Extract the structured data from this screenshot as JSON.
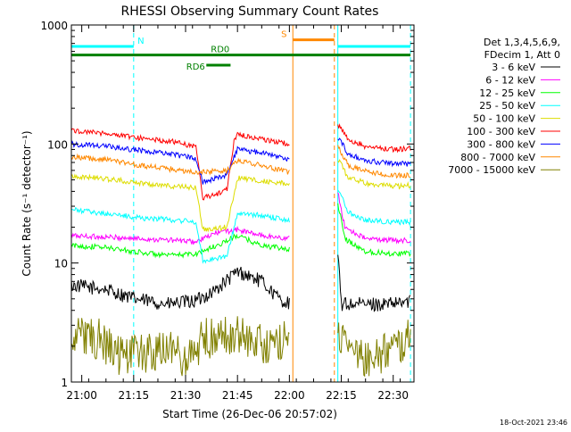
{
  "chart_data": {
    "type": "line",
    "title": "RHESSI Observing Summary Count Rates",
    "xlabel": "Start Time (26-Dec-06 20:57:02)",
    "ylabel": "Count Rate (s⁻¹ detector⁻¹)",
    "y_scale": "log",
    "ylim": [
      1,
      1000
    ],
    "xlim_minutes": [
      0,
      99
    ],
    "x_ticks": [
      {
        "label": "21:00",
        "min": 3
      },
      {
        "label": "21:15",
        "min": 18
      },
      {
        "label": "21:30",
        "min": 33
      },
      {
        "label": "21:45",
        "min": 48
      },
      {
        "label": "22:00",
        "min": 63
      },
      {
        "label": "22:15",
        "min": 78
      },
      {
        "label": "22:30",
        "min": 93
      }
    ],
    "y_ticks": [
      {
        "label": "1",
        "v": 1
      },
      {
        "label": "10",
        "v": 10
      },
      {
        "label": "100",
        "v": 100
      },
      {
        "label": "1000",
        "v": 1000
      }
    ],
    "legend_header": [
      "Det 1,3,4,5,6,9,",
      "FDecim 1, Att 0"
    ],
    "legend_position": "right",
    "series": [
      {
        "name": "3 - 6 keV",
        "color": "#000000",
        "segments": [
          [
            [
              0,
              6.5
            ],
            [
              10,
              6.0
            ],
            [
              18,
              5.0
            ],
            [
              28,
              4.5
            ],
            [
              36,
              4.8
            ],
            [
              42,
              6.0
            ],
            [
              48,
              8.5
            ],
            [
              55,
              7.0
            ],
            [
              60,
              5.0
            ],
            [
              63,
              4.5
            ]
          ],
          [
            [
              77,
              12
            ],
            [
              78,
              4.5
            ],
            [
              85,
              4.5
            ],
            [
              93,
              4.5
            ],
            [
              98,
              4.8
            ]
          ]
        ]
      },
      {
        "name": "6 - 12 keV",
        "color": "#ff00ff",
        "segments": [
          [
            [
              0,
              17
            ],
            [
              10,
              16.5
            ],
            [
              20,
              16
            ],
            [
              30,
              15.5
            ],
            [
              36,
              15
            ],
            [
              42,
              18
            ],
            [
              48,
              19
            ],
            [
              55,
              17
            ],
            [
              63,
              16
            ]
          ],
          [
            [
              77,
              40
            ],
            [
              79,
              20
            ],
            [
              85,
              16
            ],
            [
              93,
              15.5
            ],
            [
              98,
              15.5
            ]
          ]
        ]
      },
      {
        "name": "12 - 25 keV",
        "color": "#00ff00",
        "segments": [
          [
            [
              0,
              14
            ],
            [
              10,
              13.5
            ],
            [
              18,
              12.5
            ],
            [
              28,
              11.5
            ],
            [
              36,
              12
            ],
            [
              42,
              14
            ],
            [
              48,
              17
            ],
            [
              55,
              14
            ],
            [
              63,
              13
            ]
          ],
          [
            [
              77,
              32
            ],
            [
              79,
              16
            ],
            [
              85,
              12.5
            ],
            [
              93,
              12
            ],
            [
              98,
              12
            ]
          ]
        ]
      },
      {
        "name": "25 - 50 keV",
        "color": "#00ffff",
        "segments": [
          [
            [
              0,
              28
            ],
            [
              10,
              26
            ],
            [
              20,
              24
            ],
            [
              30,
              23
            ],
            [
              36,
              22
            ],
            [
              38,
              10.5
            ],
            [
              42,
              11
            ],
            [
              45,
              11.5
            ],
            [
              48,
              26
            ],
            [
              55,
              25
            ],
            [
              63,
              23
            ]
          ],
          [
            [
              77,
              42
            ],
            [
              80,
              27
            ],
            [
              85,
              23
            ],
            [
              93,
              22
            ],
            [
              98,
              22
            ]
          ]
        ]
      },
      {
        "name": "50 - 100 keV",
        "color": "#dddd00",
        "segments": [
          [
            [
              0,
              54
            ],
            [
              10,
              51
            ],
            [
              20,
              47
            ],
            [
              30,
              44
            ],
            [
              36,
              43
            ],
            [
              38,
              19
            ],
            [
              42,
              19.5
            ],
            [
              45,
              20
            ],
            [
              48,
              52
            ],
            [
              55,
              49
            ],
            [
              63,
              46
            ]
          ],
          [
            [
              77,
              75
            ],
            [
              80,
              52
            ],
            [
              85,
              47
            ],
            [
              93,
              44
            ],
            [
              98,
              45
            ]
          ]
        ]
      },
      {
        "name": "100 - 300 keV",
        "color": "#ff0000",
        "segments": [
          [
            [
              0,
              130
            ],
            [
              10,
              123
            ],
            [
              20,
              112
            ],
            [
              30,
              104
            ],
            [
              36,
              95
            ],
            [
              38,
              35
            ],
            [
              42,
              38
            ],
            [
              45,
              42
            ],
            [
              47,
              106
            ],
            [
              48,
              120
            ],
            [
              55,
              110
            ],
            [
              63,
              100
            ]
          ],
          [
            [
              77,
              145
            ],
            [
              80,
              110
            ],
            [
              85,
              95
            ],
            [
              93,
              90
            ],
            [
              98,
              92
            ]
          ]
        ]
      },
      {
        "name": "300 - 800 keV",
        "color": "#0000ff",
        "segments": [
          [
            [
              0,
              100
            ],
            [
              10,
              96
            ],
            [
              20,
              88
            ],
            [
              30,
              81
            ],
            [
              36,
              76
            ],
            [
              38,
              48
            ],
            [
              42,
              52
            ],
            [
              45,
              55
            ],
            [
              48,
              90
            ],
            [
              55,
              84
            ],
            [
              63,
              75
            ]
          ],
          [
            [
              77,
              115
            ],
            [
              80,
              82
            ],
            [
              85,
              73
            ],
            [
              93,
              68
            ],
            [
              98,
              68
            ]
          ]
        ]
      },
      {
        "name": "800 - 7000 keV",
        "color": "#ff8800",
        "segments": [
          [
            [
              0,
              78
            ],
            [
              10,
              74
            ],
            [
              20,
              66
            ],
            [
              30,
              61
            ],
            [
              36,
              57
            ],
            [
              38,
              58
            ],
            [
              45,
              60
            ],
            [
              48,
              72
            ],
            [
              55,
              66
            ],
            [
              63,
              58
            ]
          ],
          [
            [
              77,
              95
            ],
            [
              80,
              66
            ],
            [
              85,
              59
            ],
            [
              93,
              54
            ],
            [
              98,
              55
            ]
          ]
        ]
      },
      {
        "name": "7000 - 15000 keV",
        "color": "#808000",
        "segments": [
          [
            [
              0,
              2.5
            ],
            [
              8,
              2.3
            ],
            [
              14,
              1.6
            ],
            [
              28,
              1.8
            ],
            [
              34,
              1.6
            ],
            [
              38,
              2.3
            ],
            [
              45,
              2.5
            ],
            [
              52,
              2.3
            ],
            [
              58,
              2.0
            ],
            [
              63,
              2.4
            ]
          ],
          [
            [
              77,
              2.6
            ],
            [
              80,
              2.0
            ],
            [
              86,
              1.6
            ],
            [
              93,
              1.9
            ],
            [
              98,
              2.3
            ]
          ]
        ]
      }
    ],
    "annotations": [
      {
        "label": "N",
        "color": "#00ffff",
        "kind": "state_bar",
        "x": [
          0,
          18
        ],
        "y": 660
      },
      {
        "label": "N",
        "color": "#00ffff",
        "kind": "state_bar",
        "x": [
          77,
          98
        ],
        "y": 660
      },
      {
        "label": "S",
        "color": "#ff8800",
        "kind": "state_bar",
        "x": [
          64,
          76
        ],
        "y": 750
      },
      {
        "label": "RD0",
        "color": "#008000",
        "kind": "state_bar",
        "x": [
          0,
          98
        ],
        "y": 560
      },
      {
        "label": "RD6",
        "color": "#008000",
        "kind": "state_bar",
        "x": [
          39,
          46
        ],
        "y": 460
      }
    ],
    "vertical_markers": [
      {
        "x": 0,
        "color": "#00ffff",
        "style": "solid"
      },
      {
        "x": 18,
        "color": "#00ffff",
        "style": "dashed"
      },
      {
        "x": 77,
        "color": "#00ffff",
        "style": "solid"
      },
      {
        "x": 98,
        "color": "#00ffff",
        "style": "dashed"
      },
      {
        "x": 64,
        "color": "#ff8800",
        "style": "solid"
      },
      {
        "x": 76,
        "color": "#ff8800",
        "style": "dashed"
      }
    ]
  },
  "footer_timestamp": "18-Oct-2021 23:46"
}
